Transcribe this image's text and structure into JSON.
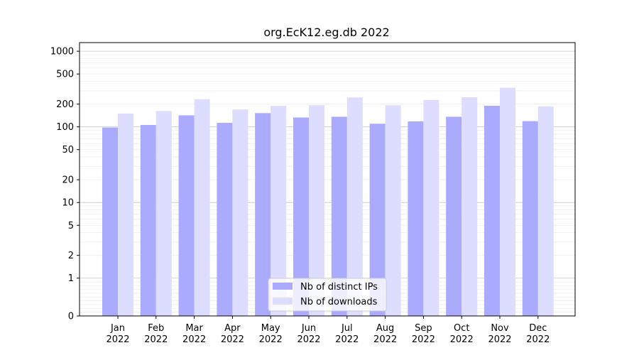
{
  "chart_data": {
    "type": "bar",
    "title": "org.EcK12.eg.db 2022",
    "xlabel": "",
    "ylabel": "",
    "y_scale": "symlog",
    "y_ticks": [
      0,
      1,
      2,
      5,
      10,
      20,
      50,
      100,
      200,
      500,
      1000
    ],
    "ylim": [
      0,
      1300
    ],
    "categories": [
      [
        "Jan",
        "2022"
      ],
      [
        "Feb",
        "2022"
      ],
      [
        "Mar",
        "2022"
      ],
      [
        "Apr",
        "2022"
      ],
      [
        "May",
        "2022"
      ],
      [
        "Jun",
        "2022"
      ],
      [
        "Jul",
        "2022"
      ],
      [
        "Aug",
        "2022"
      ],
      [
        "Sep",
        "2022"
      ],
      [
        "Oct",
        "2022"
      ],
      [
        "Nov",
        "2022"
      ],
      [
        "Dec",
        "2022"
      ]
    ],
    "series": [
      {
        "name": "Nb of distinct IPs",
        "color": "#aaaaff",
        "values": [
          98,
          106,
          142,
          113,
          152,
          133,
          136,
          110,
          118,
          136,
          190,
          119
        ]
      },
      {
        "name": "Nb of downloads",
        "color": "#ddddff",
        "values": [
          150,
          162,
          232,
          170,
          190,
          193,
          245,
          193,
          226,
          246,
          328,
          187
        ]
      }
    ],
    "grid": true,
    "legend_position": "bottom-center"
  }
}
